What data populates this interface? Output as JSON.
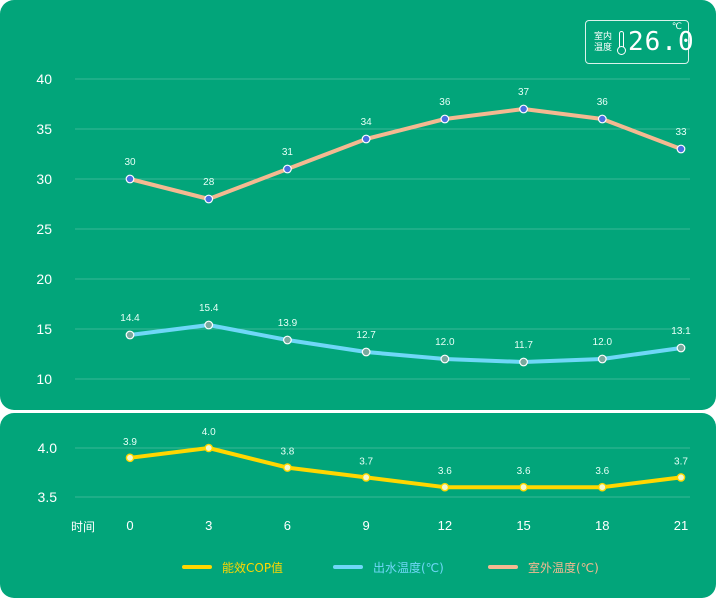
{
  "badge": {
    "label": "室内温度",
    "value": "26.0",
    "unit": "℃"
  },
  "xaxis_name": "时间",
  "colors": {
    "panel": "#02a57a",
    "cop": "#ffd700",
    "water": "#6fd7f7",
    "outdoor": "#f4b991",
    "outdoor_point": "#4a6fe0",
    "water_point": "#7aa99e",
    "cop_point": "#ffffff"
  },
  "chart_data": [
    {
      "type": "line",
      "x": [
        0,
        3,
        6,
        9,
        12,
        15,
        18,
        21
      ],
      "ylim": [
        10,
        40
      ],
      "yticks": [
        10,
        15,
        20,
        25,
        30,
        35,
        40
      ],
      "grid": true,
      "series": [
        {
          "name": "室外温度(℃)",
          "values": [
            30,
            28,
            31,
            34,
            36,
            37,
            36,
            33
          ],
          "labels": [
            "30",
            "28",
            "31",
            "34",
            "36",
            "37",
            "36",
            "33"
          ]
        },
        {
          "name": "出水温度(℃)",
          "values": [
            14.4,
            15.4,
            13.9,
            12.7,
            12.0,
            11.7,
            12.0,
            13.1
          ],
          "labels": [
            "14.4",
            "15.4",
            "13.9",
            "12.7",
            "12.0",
            "11.7",
            "12.0",
            "13.1"
          ]
        }
      ]
    },
    {
      "type": "line",
      "x": [
        0,
        3,
        6,
        9,
        12,
        15,
        18,
        21
      ],
      "xticks": [
        "0",
        "3",
        "6",
        "9",
        "12",
        "15",
        "18",
        "21"
      ],
      "ylim": [
        3.5,
        4.0
      ],
      "yticks": [
        "3.5",
        "4.0"
      ],
      "grid": true,
      "series": [
        {
          "name": "能效COP值",
          "values": [
            3.9,
            4.0,
            3.8,
            3.7,
            3.6,
            3.6,
            3.6,
            3.7
          ],
          "labels": [
            "3.9",
            "4.0",
            "3.8",
            "3.7",
            "3.6",
            "3.6",
            "3.6",
            "3.7"
          ]
        }
      ]
    }
  ],
  "legend": [
    "能效COP值",
    "出水温度(℃)",
    "室外温度(℃)"
  ]
}
